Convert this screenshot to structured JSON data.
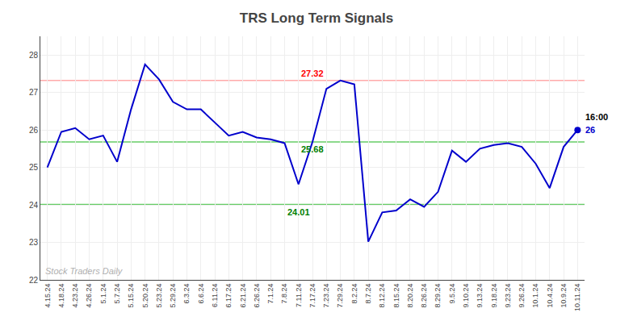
{
  "chart_data": {
    "type": "line",
    "title": "TRS Long Term Signals",
    "categories": [
      "4.15.24",
      "4.18.24",
      "4.23.24",
      "4.26.24",
      "5.1.24",
      "5.7.24",
      "5.15.24",
      "5.20.24",
      "5.23.24",
      "5.29.24",
      "6.3.24",
      "6.6.24",
      "6.11.24",
      "6.17.24",
      "6.21.24",
      "6.26.24",
      "7.1.24",
      "7.8.24",
      "7.11.24",
      "7.17.24",
      "7.23.24",
      "7.29.24",
      "8.2.24",
      "8.7.24",
      "8.12.24",
      "8.15.24",
      "8.20.24",
      "8.26.24",
      "8.29.24",
      "9.5.24",
      "9.10.24",
      "9.13.24",
      "9.18.24",
      "9.23.24",
      "9.26.24",
      "10.1.24",
      "10.4.24",
      "10.9.24",
      "10.11.24"
    ],
    "values": [
      25.0,
      25.95,
      26.05,
      25.75,
      25.85,
      25.15,
      26.55,
      27.75,
      27.35,
      26.75,
      26.55,
      26.55,
      26.2,
      25.85,
      25.95,
      25.8,
      25.75,
      25.65,
      24.55,
      25.68,
      27.1,
      27.32,
      27.22,
      23.02,
      23.8,
      23.85,
      24.15,
      23.95,
      24.35,
      25.45,
      25.15,
      25.5,
      25.6,
      25.65,
      25.55,
      25.1,
      24.45,
      25.55,
      26.0
    ],
    "color": "#0000cc",
    "ylim": [
      22,
      28.5
    ],
    "yticks": [
      22,
      23,
      24,
      25,
      26,
      27,
      28
    ],
    "grid": true,
    "hlines": [
      {
        "value": 27.32,
        "color": "#ffaaaa",
        "label": "27.32",
        "label_color": "red",
        "label_position": "above",
        "label_at": "7.17.24"
      },
      {
        "value": 25.68,
        "color": "#66cc66",
        "label": "25.68",
        "label_color": "green",
        "label_position": "below",
        "label_at": "7.17.24"
      },
      {
        "value": 24.01,
        "color": "#66cc66",
        "label": "24.01",
        "label_color": "green",
        "label_position": "below",
        "label_at": "7.11.24"
      }
    ],
    "annotations": [
      {
        "text": "16:00",
        "color": "black",
        "anchor": "last_point_above"
      },
      {
        "text": "26",
        "color": "#0000cc",
        "anchor": "last_point"
      },
      {
        "text": "Stock Traders Daily",
        "color": "#b0b0b0",
        "anchor": "bottom_left"
      }
    ]
  }
}
